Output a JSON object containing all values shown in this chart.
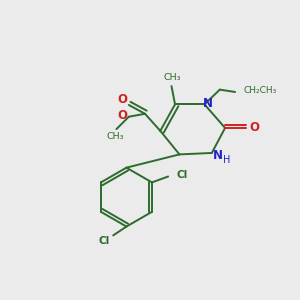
{
  "background_color": "#ebebeb",
  "bond_color": "#2d6b2d",
  "nitrogen_color": "#2222cc",
  "oxygen_color": "#cc2222",
  "chlorine_color": "#2d6b2d",
  "figsize": [
    3.0,
    3.0
  ],
  "dpi": 100,
  "xlim": [
    0,
    10
  ],
  "ylim": [
    0,
    10
  ]
}
